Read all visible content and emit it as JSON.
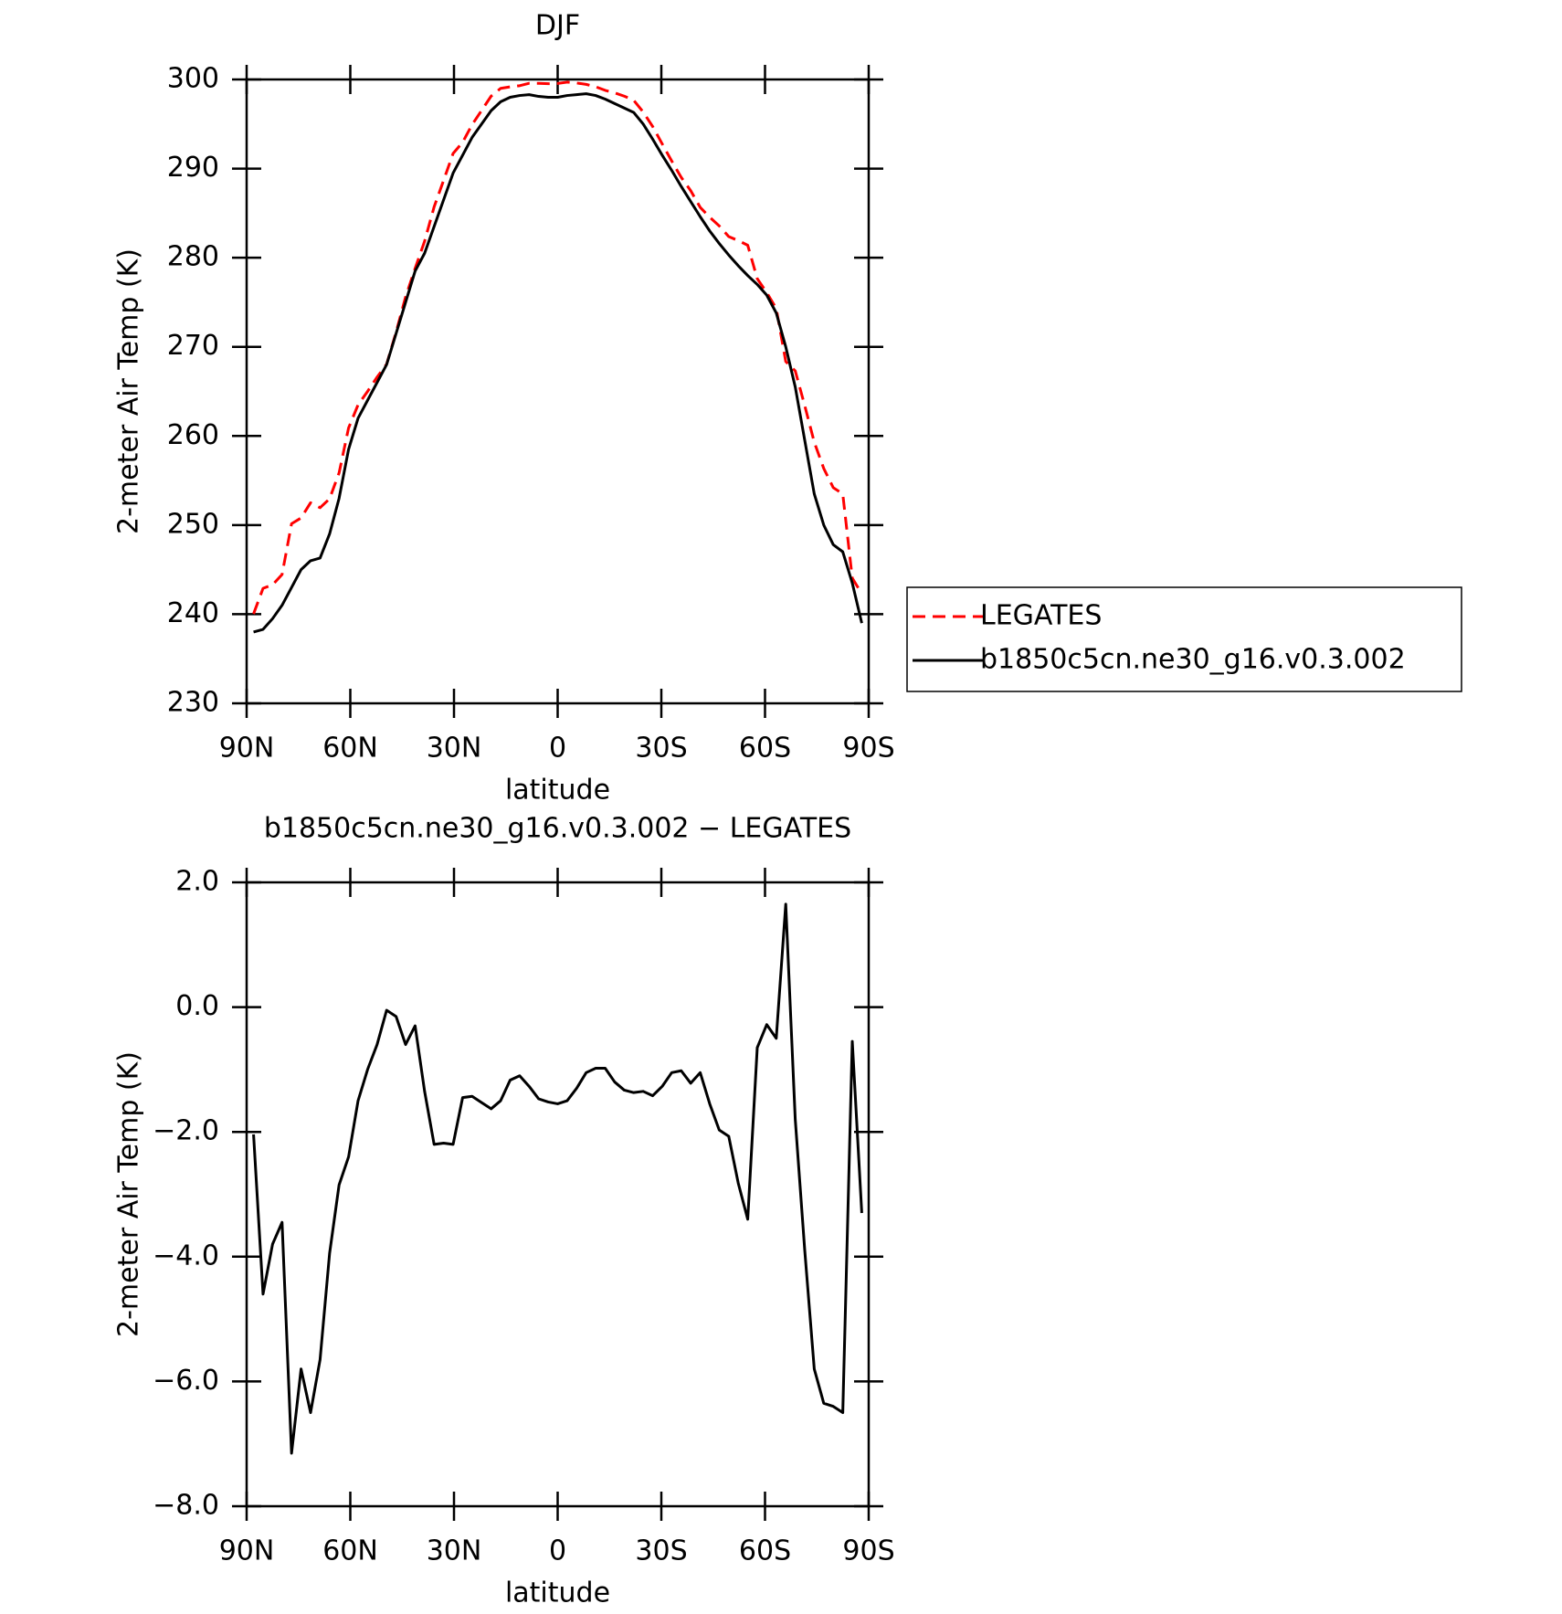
{
  "chart_data": [
    {
      "type": "line",
      "title": "DJF",
      "xlabel": "latitude",
      "ylabel": "2-meter Air Temp (K)",
      "x": [
        88,
        85.25,
        82.5,
        79.75,
        77,
        74.25,
        71.5,
        68.75,
        66,
        63.25,
        60.5,
        57.75,
        55,
        52.25,
        49.5,
        46.75,
        44,
        41.25,
        38.5,
        35.75,
        33,
        30.25,
        27.5,
        24.75,
        22,
        19.25,
        16.5,
        13.75,
        11,
        8.25,
        5.5,
        2.75,
        0,
        -2.75,
        -5.5,
        -8.25,
        -11,
        -13.75,
        -16.5,
        -19.25,
        -22,
        -24.75,
        -27.5,
        -30.25,
        -33,
        -35.75,
        -38.5,
        -41.25,
        -44,
        -46.75,
        -49.5,
        -52.25,
        -55,
        -57.75,
        -60.5,
        -63.25,
        -66,
        -68.75,
        -71.5,
        -74.25,
        -77,
        -79.75,
        -82.5,
        -85.25,
        -88
      ],
      "series": [
        {
          "name": "LEGATES",
          "color": "#ff0000",
          "dashed": true,
          "values": [
            240.04,
            242.9,
            243.3,
            244.45,
            250.15,
            250.8,
            252.5,
            251.95,
            252.95,
            255.85,
            260.9,
            263.5,
            265.0,
            266.6,
            268.05,
            271.65,
            275.6,
            278.8,
            281.85,
            285.7,
            288.68,
            291.7,
            292.95,
            294.93,
            296.53,
            298.13,
            299.0,
            299.17,
            299.3,
            299.57,
            299.57,
            299.52,
            299.55,
            299.7,
            299.6,
            299.45,
            299.18,
            298.78,
            298.5,
            298.13,
            297.67,
            296.35,
            294.72,
            292.77,
            290.85,
            289.02,
            287.52,
            285.65,
            284.55,
            283.57,
            282.37,
            281.92,
            281.4,
            277.65,
            276.08,
            274.3,
            268.35,
            267.3,
            263.4,
            259.3,
            256.35,
            254.2,
            253.5,
            244.05,
            242.3
          ]
        },
        {
          "name": "b1850c5cn.ne30_g16.v0.3.002",
          "color": "#000000",
          "dashed": false,
          "values": [
            238.0,
            238.3,
            239.5,
            241.0,
            243.0,
            245.0,
            246.0,
            246.3,
            249.0,
            253.0,
            258.5,
            262.0,
            264.0,
            266.0,
            268.0,
            271.5,
            275.0,
            278.5,
            280.5,
            283.5,
            286.5,
            289.5,
            291.5,
            293.5,
            295.0,
            296.5,
            297.5,
            298.0,
            298.2,
            298.3,
            298.1,
            298.0,
            298.0,
            298.2,
            298.3,
            298.4,
            298.2,
            297.8,
            297.3,
            296.8,
            296.3,
            295.0,
            293.3,
            291.5,
            289.8,
            288.0,
            286.3,
            284.6,
            283.0,
            281.6,
            280.3,
            279.1,
            278.0,
            277.0,
            275.8,
            273.8,
            270.0,
            265.5,
            259.5,
            253.5,
            250.0,
            247.8,
            247.0,
            243.5,
            239.0
          ]
        }
      ],
      "xlim": [
        90,
        -90
      ],
      "xticks": [
        {
          "value": 90,
          "label": "90N"
        },
        {
          "value": 60,
          "label": "60N"
        },
        {
          "value": 30,
          "label": "30N"
        },
        0,
        {
          "value": -30,
          "label": "30S"
        },
        {
          "value": -60,
          "label": "60S"
        },
        {
          "value": -90,
          "label": "90S"
        }
      ],
      "ylim": [
        230,
        300
      ],
      "yticks": [
        230,
        240,
        250,
        260,
        270,
        280,
        290,
        300
      ],
      "legend": "right"
    },
    {
      "type": "line",
      "title": "b1850c5cn.ne30_g16.v0.3.002 − LEGATES",
      "xlabel": "latitude",
      "ylabel": "2-meter Air Temp (K)",
      "x": [
        88,
        85.25,
        82.5,
        79.75,
        77,
        74.25,
        71.5,
        68.75,
        66,
        63.25,
        60.5,
        57.75,
        55,
        52.25,
        49.5,
        46.75,
        44,
        41.25,
        38.5,
        35.75,
        33,
        30.25,
        27.5,
        24.75,
        22,
        19.25,
        16.5,
        13.75,
        11,
        8.25,
        5.5,
        2.75,
        0,
        -2.75,
        -5.5,
        -8.25,
        -11,
        -13.75,
        -16.5,
        -19.25,
        -22,
        -24.75,
        -27.5,
        -30.25,
        -33,
        -35.75,
        -38.5,
        -41.25,
        -44,
        -46.75,
        -49.5,
        -52.25,
        -55,
        -57.75,
        -60.5,
        -63.25,
        -66,
        -68.75,
        -71.5,
        -74.25,
        -77,
        -79.75,
        -82.5,
        -85.25,
        -88
      ],
      "series": [
        {
          "color": "#000000",
          "dashed": false,
          "values": [
            -2.04,
            -4.6,
            -3.8,
            -3.45,
            -7.15,
            -5.8,
            -6.5,
            -5.65,
            -3.95,
            -2.85,
            -2.4,
            -1.5,
            -1.0,
            -0.6,
            -0.05,
            -0.15,
            -0.6,
            -0.3,
            -1.35,
            -2.2,
            -2.18,
            -2.2,
            -1.45,
            -1.43,
            -1.53,
            -1.63,
            -1.5,
            -1.17,
            -1.1,
            -1.27,
            -1.47,
            -1.52,
            -1.55,
            -1.5,
            -1.3,
            -1.05,
            -0.98,
            -0.98,
            -1.2,
            -1.33,
            -1.37,
            -1.35,
            -1.42,
            -1.27,
            -1.05,
            -1.02,
            -1.22,
            -1.05,
            -1.55,
            -1.97,
            -2.07,
            -2.82,
            -3.4,
            -0.65,
            -0.28,
            -0.5,
            1.65,
            -1.8,
            -3.9,
            -5.8,
            -6.35,
            -6.4,
            -6.5,
            -0.55,
            -3.3
          ]
        }
      ],
      "xlim": [
        90,
        -90
      ],
      "xticks": [
        {
          "value": 90,
          "label": "90N"
        },
        {
          "value": 60,
          "label": "60N"
        },
        {
          "value": 30,
          "label": "30N"
        },
        0,
        {
          "value": -30,
          "label": "30S"
        },
        {
          "value": -60,
          "label": "60S"
        },
        {
          "value": -90,
          "label": "90S"
        }
      ],
      "ylim": [
        -8,
        2
      ],
      "yticks": [
        {
          "value": -8,
          "label": "−8.0"
        },
        {
          "value": -6,
          "label": "−6.0"
        },
        {
          "value": -4,
          "label": "−4.0"
        },
        {
          "value": -2,
          "label": "−2.0"
        },
        {
          "value": 0,
          "label": "0.0"
        },
        {
          "value": 2,
          "label": "2.0"
        }
      ]
    }
  ]
}
